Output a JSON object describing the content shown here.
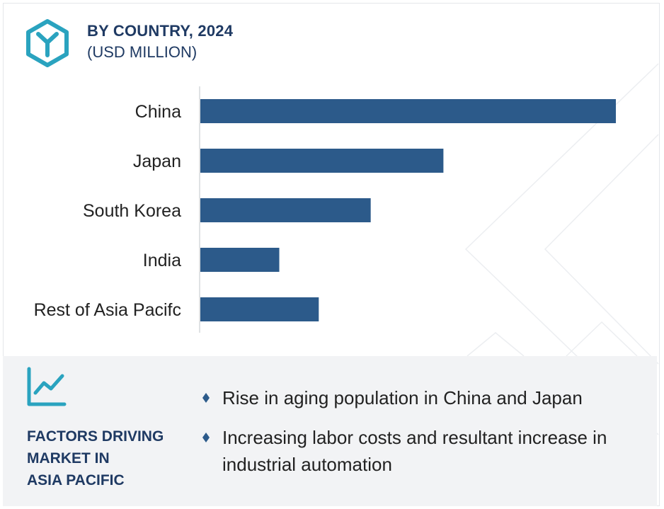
{
  "header": {
    "title": "BY COUNTRY, 2024",
    "subtitle": "(USD MILLION)"
  },
  "icons": {
    "logo": "hexagon-y-logo-icon",
    "trend": "trend-line-chart-icon",
    "bullet": "diamond-bullet-icon"
  },
  "colors": {
    "bar": "#2c5a8a",
    "heading": "#1f3a63",
    "accent": "#2aa3bf",
    "panel_bg": "#f2f3f5"
  },
  "chart_data": {
    "type": "bar",
    "orientation": "horizontal",
    "title": "BY COUNTRY, 2024",
    "subtitle": "(USD MILLION)",
    "categories": [
      "China",
      "Japan",
      "South Korea",
      "India",
      "Rest of Asia Pacifc"
    ],
    "values": [
      100,
      58.5,
      41,
      19,
      28.5
    ],
    "xlim": [
      0,
      100
    ],
    "grid": false,
    "legend": "none"
  },
  "factors": {
    "title": "FACTORS DRIVING MARKET IN ASIA PACIFIC",
    "title_lines": [
      "FACTORS DRIVING",
      "MARKET IN",
      "ASIA PACIFIC"
    ],
    "items": [
      "Rise in aging population in China and Japan",
      "Increasing labor costs and resultant increase in industrial automation"
    ]
  }
}
